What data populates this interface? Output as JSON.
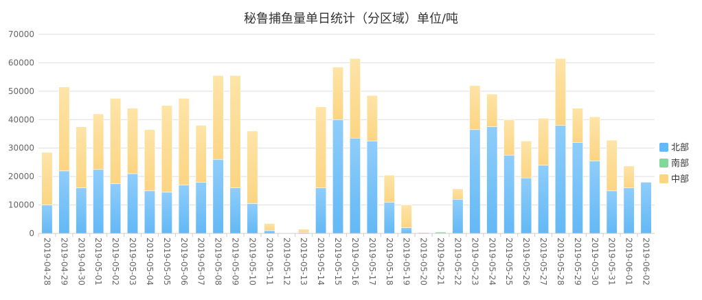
{
  "chart_data": {
    "type": "bar",
    "stacked": true,
    "title": "秘鲁捕鱼量单日统计（分区域）单位/吨",
    "xlabel": "",
    "ylabel": "",
    "ylim": [
      0,
      70000
    ],
    "yticks": [
      0,
      10000,
      20000,
      30000,
      40000,
      50000,
      60000,
      70000
    ],
    "grid": true,
    "legend_position": "right",
    "categories": [
      "2019-04-28",
      "2019-04-29",
      "2019-04-30",
      "2019-05-01",
      "2019-05-02",
      "2019-05-03",
      "2019-05-04",
      "2019-05-05",
      "2019-05-06",
      "2019-05-07",
      "2019-05-08",
      "2019-05-09",
      "2019-05-10",
      "2019-05-11",
      "2019-05-12",
      "2019-05-13",
      "2019-05-14",
      "2019-05-15",
      "2019-05-16",
      "2019-05-17",
      "2019-05-18",
      "2019-05-19",
      "2019-05-20",
      "2019-05-21",
      "2019-05-22",
      "2019-05-23",
      "2019-05-24",
      "2019-05-25",
      "2019-05-26",
      "2019-05-27",
      "2019-05-28",
      "2019-05-29",
      "2019-05-30",
      "2019-05-31",
      "2019-06-01",
      "2019-06-02"
    ],
    "series": [
      {
        "name": "北部",
        "color": "#63b8f5",
        "values": [
          10000,
          22000,
          16000,
          22500,
          17500,
          21000,
          15000,
          14500,
          17000,
          18000,
          26000,
          16000,
          10500,
          1000,
          0,
          300,
          16000,
          40000,
          33500,
          32500,
          11000,
          2000,
          0,
          0,
          12000,
          36500,
          37500,
          27500,
          19500,
          24000,
          38000,
          32000,
          25500,
          15000,
          16000,
          18000
        ]
      },
      {
        "name": "南部",
        "color": "#7ed99a",
        "values": [
          0,
          0,
          0,
          0,
          0,
          0,
          0,
          0,
          0,
          0,
          0,
          0,
          0,
          0,
          0,
          0,
          0,
          0,
          0,
          0,
          0,
          0,
          300,
          500,
          0,
          0,
          0,
          0,
          0,
          0,
          0,
          0,
          0,
          0,
          0,
          0
        ]
      },
      {
        "name": "中部",
        "color": "#fcd583",
        "values": [
          18500,
          29500,
          21500,
          19500,
          30000,
          23000,
          21500,
          30500,
          30500,
          20000,
          29500,
          39500,
          25500,
          2500,
          0,
          1200,
          28500,
          18500,
          28000,
          16000,
          9500,
          8000,
          0,
          0,
          3700,
          15500,
          11500,
          12500,
          13000,
          16500,
          23500,
          12000,
          15500,
          17800,
          7700,
          0
        ]
      }
    ]
  },
  "legend": {
    "items": [
      {
        "label": "北部",
        "color": "#63b8f5"
      },
      {
        "label": "南部",
        "color": "#7ed99a"
      },
      {
        "label": "中部",
        "color": "#fcd583"
      }
    ]
  }
}
